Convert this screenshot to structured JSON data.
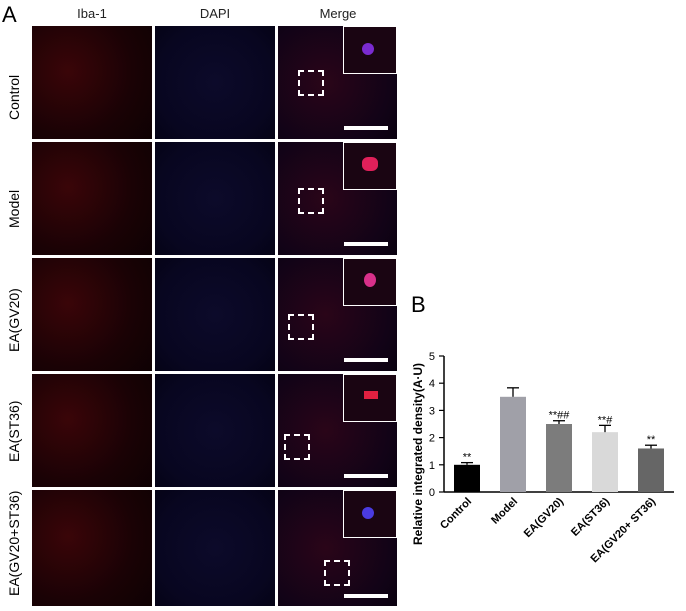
{
  "panel_a": {
    "letter": "A",
    "columns": [
      "Iba-1",
      "DAPI",
      "Merge"
    ],
    "rows": [
      "Control",
      "Model",
      "EA(GV20)",
      "EA(ST36)",
      "EA(GV20+ST36)"
    ]
  },
  "panel_b": {
    "letter": "B"
  },
  "chart_data": {
    "type": "bar",
    "categories": [
      "Control",
      "Model",
      "EA(GV20)",
      "EA(ST36)",
      "EA(GV20+ ST36)"
    ],
    "values": [
      1.0,
      3.5,
      2.5,
      2.2,
      1.6
    ],
    "errors": [
      0.08,
      0.33,
      0.12,
      0.25,
      0.12
    ],
    "annotations": [
      "**",
      "",
      "**##",
      "**#",
      "**"
    ],
    "colors": [
      "#000000",
      "#a0a0a8",
      "#7c7c7c",
      "#d9d9d9",
      "#666666"
    ],
    "ylabel": "Relative integrated density(A·U)",
    "ylim": [
      0,
      5
    ],
    "yticks": [
      "0",
      "1",
      "2",
      "3",
      "4",
      "5"
    ],
    "grid": false
  }
}
